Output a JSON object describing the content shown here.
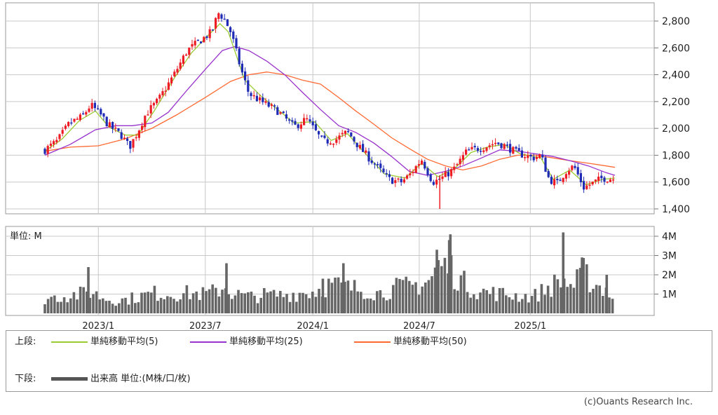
{
  "chart_data": [
    {
      "type": "candlestick",
      "title": "",
      "y_ticks": [
        "2,800",
        "2,600",
        "2,400",
        "2,200",
        "2,000",
        "1,800",
        "1,600",
        "1,400"
      ],
      "ylim": [
        1400,
        2900
      ],
      "grid": true,
      "x_ticks": [
        "2023/1",
        "2023/7",
        "2024/1",
        "2024/7",
        "2025/1"
      ],
      "x_range": [
        "2022-10-03",
        "2025-05-30"
      ],
      "up_color": "#ee1c25",
      "down_color": "#1f2bb5",
      "price_path": [
        [
          "2022-10-03",
          1840
        ],
        [
          "2022-10-24",
          1905
        ],
        [
          "2022-11-14",
          2040
        ],
        [
          "2022-12-05",
          2085
        ],
        [
          "2022-12-20",
          2175
        ],
        [
          "2023-01-06",
          2100
        ],
        [
          "2023-01-20",
          2020
        ],
        [
          "2023-02-10",
          1950
        ],
        [
          "2023-02-24",
          1860
        ],
        [
          "2023-03-10",
          1975
        ],
        [
          "2023-03-24",
          2110
        ],
        [
          "2023-04-14",
          2210
        ],
        [
          "2023-05-12",
          2410
        ],
        [
          "2023-06-02",
          2580
        ],
        [
          "2023-06-23",
          2650
        ],
        [
          "2023-07-14",
          2720
        ],
        [
          "2023-07-25",
          2860
        ],
        [
          "2023-08-04",
          2820
        ],
        [
          "2023-08-16",
          2710
        ],
        [
          "2023-09-01",
          2450
        ],
        [
          "2023-09-15",
          2260
        ],
        [
          "2023-10-06",
          2200
        ],
        [
          "2023-11-03",
          2130
        ],
        [
          "2023-12-01",
          2010
        ],
        [
          "2023-12-22",
          2070
        ],
        [
          "2024-01-19",
          1900
        ],
        [
          "2024-02-09",
          1915
        ],
        [
          "2024-03-01",
          1975
        ],
        [
          "2024-03-22",
          1855
        ],
        [
          "2024-04-19",
          1720
        ],
        [
          "2024-05-10",
          1620
        ],
        [
          "2024-05-31",
          1600
        ],
        [
          "2024-06-14",
          1650
        ],
        [
          "2024-07-05",
          1770
        ],
        [
          "2024-07-24",
          1600
        ],
        [
          "2024-08-05",
          1620
        ],
        [
          "2024-08-30",
          1700
        ],
        [
          "2024-09-20",
          1830
        ],
        [
          "2024-10-18",
          1860
        ],
        [
          "2024-11-08",
          1895
        ],
        [
          "2024-11-25",
          1870
        ],
        [
          "2024-12-13",
          1820
        ],
        [
          "2025-01-10",
          1780
        ],
        [
          "2025-01-24",
          1800
        ],
        [
          "2025-02-07",
          1620
        ],
        [
          "2025-02-21",
          1590
        ],
        [
          "2025-03-07",
          1680
        ],
        [
          "2025-03-21",
          1720
        ],
        [
          "2025-04-07",
          1560
        ],
        [
          "2025-04-21",
          1590
        ],
        [
          "2025-05-09",
          1630
        ],
        [
          "2025-05-30",
          1625
        ]
      ],
      "series": [
        {
          "name": "単純移動平均(5)",
          "color": "#9acd32",
          "points": [
            [
              "2022-10-03",
              1830
            ],
            [
              "2022-11-01",
              1920
            ],
            [
              "2022-12-01",
              2060
            ],
            [
              "2022-12-28",
              2130
            ],
            [
              "2023-01-20",
              2010
            ],
            [
              "2023-02-17",
              1950
            ],
            [
              "2023-03-10",
              1950
            ],
            [
              "2023-04-07",
              2130
            ],
            [
              "2023-05-12",
              2380
            ],
            [
              "2023-06-09",
              2560
            ],
            [
              "2023-07-07",
              2690
            ],
            [
              "2023-07-28",
              2780
            ],
            [
              "2023-08-11",
              2720
            ],
            [
              "2023-09-08",
              2360
            ],
            [
              "2023-10-06",
              2240
            ],
            [
              "2023-11-03",
              2140
            ],
            [
              "2023-12-01",
              2040
            ],
            [
              "2024-01-05",
              2050
            ],
            [
              "2024-02-02",
              1910
            ],
            [
              "2024-03-01",
              1960
            ],
            [
              "2024-04-05",
              1790
            ],
            [
              "2024-05-03",
              1660
            ],
            [
              "2024-06-07",
              1630
            ],
            [
              "2024-07-05",
              1740
            ],
            [
              "2024-08-02",
              1640
            ],
            [
              "2024-08-30",
              1700
            ],
            [
              "2024-09-27",
              1820
            ],
            [
              "2024-10-25",
              1860
            ],
            [
              "2024-11-22",
              1880
            ],
            [
              "2024-12-20",
              1810
            ],
            [
              "2025-01-24",
              1780
            ],
            [
              "2025-02-14",
              1620
            ],
            [
              "2025-03-14",
              1690
            ],
            [
              "2025-04-11",
              1580
            ],
            [
              "2025-05-09",
              1620
            ],
            [
              "2025-05-30",
              1630
            ]
          ]
        },
        {
          "name": "単純移動平均(25)",
          "color": "#9932cc",
          "points": [
            [
              "2022-10-03",
              1800
            ],
            [
              "2022-11-15",
              1880
            ],
            [
              "2022-12-28",
              1990
            ],
            [
              "2023-02-01",
              2020
            ],
            [
              "2023-03-01",
              2020
            ],
            [
              "2023-04-03",
              2040
            ],
            [
              "2023-05-01",
              2120
            ],
            [
              "2023-06-01",
              2280
            ],
            [
              "2023-07-03",
              2440
            ],
            [
              "2023-08-01",
              2580
            ],
            [
              "2023-08-22",
              2610
            ],
            [
              "2023-09-15",
              2580
            ],
            [
              "2023-10-16",
              2500
            ],
            [
              "2023-11-15",
              2400
            ],
            [
              "2023-12-15",
              2270
            ],
            [
              "2024-01-15",
              2140
            ],
            [
              "2024-02-15",
              2020
            ],
            [
              "2024-03-15",
              1970
            ],
            [
              "2024-04-15",
              1890
            ],
            [
              "2024-05-15",
              1790
            ],
            [
              "2024-06-14",
              1680
            ],
            [
              "2024-07-15",
              1650
            ],
            [
              "2024-08-15",
              1680
            ],
            [
              "2024-09-13",
              1720
            ],
            [
              "2024-10-15",
              1780
            ],
            [
              "2024-11-15",
              1840
            ],
            [
              "2024-12-16",
              1830
            ],
            [
              "2025-01-15",
              1810
            ],
            [
              "2025-02-14",
              1790
            ],
            [
              "2025-03-14",
              1760
            ],
            [
              "2025-04-15",
              1720
            ],
            [
              "2025-05-15",
              1670
            ],
            [
              "2025-05-30",
              1650
            ]
          ]
        },
        {
          "name": "単純移動平均(50)",
          "color": "#ff6a33",
          "points": [
            [
              "2022-10-03",
              1830
            ],
            [
              "2022-11-15",
              1860
            ],
            [
              "2023-01-02",
              1870
            ],
            [
              "2023-02-15",
              1920
            ],
            [
              "2023-04-03",
              2000
            ],
            [
              "2023-05-15",
              2100
            ],
            [
              "2023-07-03",
              2230
            ],
            [
              "2023-08-15",
              2350
            ],
            [
              "2023-09-15",
              2400
            ],
            [
              "2023-10-16",
              2420
            ],
            [
              "2023-11-15",
              2400
            ],
            [
              "2023-12-15",
              2360
            ],
            [
              "2024-01-15",
              2330
            ],
            [
              "2024-02-15",
              2230
            ],
            [
              "2024-03-15",
              2130
            ],
            [
              "2024-04-15",
              2030
            ],
            [
              "2024-05-15",
              1930
            ],
            [
              "2024-06-14",
              1850
            ],
            [
              "2024-07-15",
              1770
            ],
            [
              "2024-08-15",
              1720
            ],
            [
              "2024-09-13",
              1690
            ],
            [
              "2024-10-15",
              1720
            ],
            [
              "2024-11-15",
              1770
            ],
            [
              "2024-12-16",
              1800
            ],
            [
              "2025-01-15",
              1800
            ],
            [
              "2025-02-14",
              1780
            ],
            [
              "2025-03-14",
              1760
            ],
            [
              "2025-04-15",
              1740
            ],
            [
              "2025-05-15",
              1720
            ],
            [
              "2025-05-30",
              1710
            ]
          ]
        }
      ]
    },
    {
      "type": "bar",
      "unit_label": "単位: M",
      "y_ticks": [
        "4M",
        "3M",
        "2M",
        "1M"
      ],
      "ylim": [
        0,
        4.5
      ],
      "grid": true,
      "bar_color": "#666666",
      "x_ticks": [
        "2023/1",
        "2023/7",
        "2024/1",
        "2024/7",
        "2025/1"
      ],
      "x_range": [
        "2022-10-03",
        "2025-05-30"
      ],
      "volume_profile": [
        [
          "2022-10-03",
          0.8
        ],
        [
          "2022-10-24",
          0.9
        ],
        [
          "2022-11-14",
          1.0
        ],
        [
          "2022-12-05",
          1.05
        ],
        [
          "2022-12-20",
          1.2
        ],
        [
          "2023-01-06",
          0.9
        ],
        [
          "2023-01-27",
          0.7
        ],
        [
          "2023-02-17",
          0.75
        ],
        [
          "2023-03-10",
          0.9
        ],
        [
          "2023-04-07",
          1.1
        ],
        [
          "2023-05-05",
          1.05
        ],
        [
          "2023-06-02",
          1.1
        ],
        [
          "2023-07-03",
          1.05
        ],
        [
          "2023-07-21",
          1.2
        ],
        [
          "2023-08-04",
          1.5
        ],
        [
          "2023-08-18",
          1.1
        ],
        [
          "2023-09-15",
          0.9
        ],
        [
          "2023-10-13",
          1.0
        ],
        [
          "2023-11-10",
          1.0
        ],
        [
          "2023-12-08",
          1.1
        ],
        [
          "2024-01-05",
          1.2
        ],
        [
          "2024-02-02",
          1.6
        ],
        [
          "2024-03-01",
          1.4
        ],
        [
          "2024-03-29",
          1.3
        ],
        [
          "2024-04-26",
          1.1
        ],
        [
          "2024-05-24",
          1.4
        ],
        [
          "2024-06-21",
          1.5
        ],
        [
          "2024-07-19",
          1.8
        ],
        [
          "2024-08-02",
          2.6
        ],
        [
          "2024-08-23",
          2.5
        ],
        [
          "2024-09-13",
          1.7
        ],
        [
          "2024-10-11",
          1.2
        ],
        [
          "2024-11-08",
          1.1
        ],
        [
          "2024-12-06",
          1.0
        ],
        [
          "2025-01-10",
          0.9
        ],
        [
          "2025-01-31",
          1.3
        ],
        [
          "2025-02-28",
          1.8
        ],
        [
          "2025-03-21",
          1.5
        ],
        [
          "2025-04-07",
          2.2
        ],
        [
          "2025-04-25",
          1.6
        ],
        [
          "2025-05-16",
          1.3
        ],
        [
          "2025-05-30",
          0.7
        ]
      ],
      "spikes": [
        [
          "2022-12-16",
          2.4
        ],
        [
          "2023-08-08",
          2.6
        ],
        [
          "2024-01-19",
          1.8
        ],
        [
          "2024-02-23",
          2.6
        ],
        [
          "2024-07-31",
          3.3
        ],
        [
          "2024-08-21",
          3.8
        ],
        [
          "2024-08-23",
          4.1
        ],
        [
          "2025-03-03",
          4.2
        ],
        [
          "2025-04-04",
          2.9
        ],
        [
          "2025-05-16",
          2.0
        ]
      ]
    }
  ],
  "legend": {
    "upper_label": "上段:",
    "lower_label": "下段:",
    "items": [
      {
        "label": "単純移動平均(5)",
        "color": "#9acd32"
      },
      {
        "label": "単純移動平均(25)",
        "color": "#9932cc"
      },
      {
        "label": "単純移動平均(50)",
        "color": "#ff6a33"
      }
    ],
    "volume_label": "出来高 単位:(M株/口/枚)",
    "volume_color": "#555555"
  },
  "copyright": "(c)Ouants Research Inc."
}
